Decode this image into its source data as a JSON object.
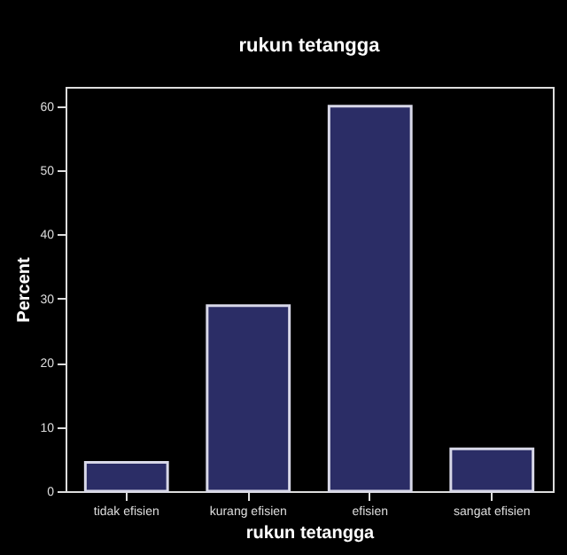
{
  "chart_data": {
    "type": "bar",
    "title": "rukun tetangga",
    "xlabel": "rukun tetangga",
    "ylabel": "Percent",
    "categories": [
      "tidak efisien",
      "kurang efisien",
      "efisien",
      "sangat efisien"
    ],
    "values": [
      4.5,
      28.9,
      60,
      6.6
    ],
    "color": "#2b2d66",
    "ylim": [
      0,
      63
    ],
    "yticks": [
      0,
      10,
      20,
      30,
      40,
      50,
      60
    ],
    "grid": false
  }
}
